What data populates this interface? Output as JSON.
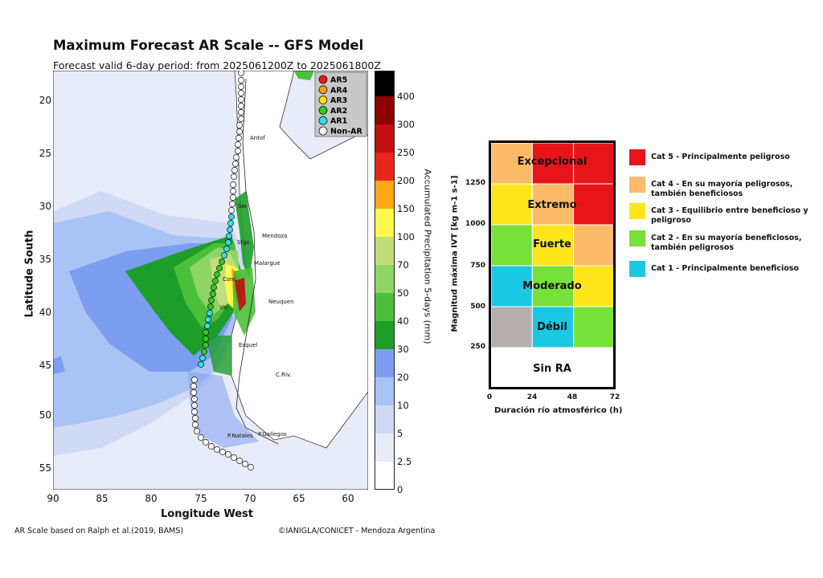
{
  "map": {
    "title": "Maximum Forecast AR Scale -- GFS Model",
    "subtitle": "Forecast valid 6-day period: from 2025061200Z to 2025061800Z",
    "ylabel": "Latitude South",
    "xlabel": "Longitude West",
    "yticks": [
      "20",
      "25",
      "30",
      "35",
      "40",
      "45",
      "50",
      "55"
    ],
    "xticks": [
      "90",
      "85",
      "80",
      "75",
      "70",
      "65",
      "60"
    ],
    "legend": [
      "AR5",
      "AR4",
      "AR3",
      "AR2",
      "AR1",
      "Non-AR"
    ],
    "legend_colors": [
      "#e31a1c",
      "#ff9f1c",
      "#ffe600",
      "#2ecc1c",
      "#33e0e8",
      "#ffffff"
    ],
    "cities": [
      "Antof",
      "Ser",
      "Stgo",
      "Mendoza",
      "Malargue",
      "Conc",
      "Neuquen",
      "Val",
      "Esquel",
      "C.Riv.",
      "P.Natales",
      "P.Gallegos"
    ],
    "colorbar_label": "Accumulated Precipitation 5-days (mm)",
    "colorbar_ticks": [
      "0",
      "2.5",
      "5",
      "10",
      "20",
      "30",
      "40",
      "50",
      "70",
      "100",
      "150",
      "200",
      "250",
      "300",
      "400"
    ],
    "colorbar_colors": [
      "#ffffff",
      "#e8ecf8",
      "#d0daf5",
      "#a9c4f4",
      "#7d9ef0",
      "#1d9e2a",
      "#4cbf3a",
      "#8fd466",
      "#c4dd7c",
      "#fff94e",
      "#ffa716",
      "#e8261c",
      "#c20e0e",
      "#8d0000",
      "#000000"
    ]
  },
  "footer": {
    "left": "AR Scale based on Ralph et al.(2019, BAMS)",
    "right": "©IANIGLA/CONICET - Mendoza Argentina"
  },
  "risk_matrix": {
    "ylabel": "Magnitud máxima IVT [kg m-1 s-1]",
    "xlabel": "Duración río atmosférico (h)",
    "yticks": [
      "1250",
      "1000",
      "750",
      "500",
      "250"
    ],
    "xticks": [
      "0",
      "24",
      "48",
      "72"
    ],
    "rows": [
      "Excepcional",
      "Extremo",
      "Fuerte",
      "Moderado",
      "Débil",
      "Sin RA"
    ],
    "cell_colors": [
      [
        "#fdbb69",
        "#e8141a",
        "#e8141a"
      ],
      [
        "#ffe61a",
        "#fdbb69",
        "#e8141a"
      ],
      [
        "#77e13a",
        "#ffe61a",
        "#fdbb69"
      ],
      [
        "#1bc8e1",
        "#77e13a",
        "#ffe61a"
      ],
      [
        "#b4aeae",
        "#1bc8e1",
        "#77e13a"
      ],
      [
        "#ffffff",
        "#ffffff",
        "#ffffff"
      ]
    ]
  },
  "categories": [
    {
      "label": "Cat 5 - Principalmente peligroso",
      "color": "#e8141a"
    },
    {
      "label": "Cat 4 - En su mayoría peligrosos, también beneficiosos",
      "color": "#fdbb69"
    },
    {
      "label": "Cat 3 - Equilibrio entre beneficioso y peligroso",
      "color": "#ffe61a"
    },
    {
      "label": "Cat 2 - En su mayoría beneficiosos, también peligrosos",
      "color": "#77e13a"
    },
    {
      "label": "Cat 1 - Principalmente beneficioso",
      "color": "#1bc8e1"
    }
  ]
}
